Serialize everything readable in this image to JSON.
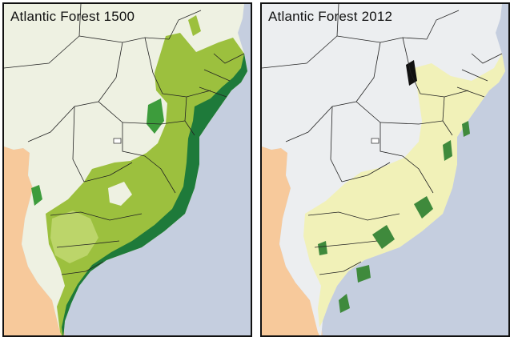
{
  "panels": [
    {
      "title": "Atlantic Forest 1500"
    },
    {
      "title": "Atlantic Forest 2012"
    }
  ],
  "colors": {
    "ocean": "#c5cedf",
    "neighbor_country": "#f7c99b",
    "land_1500": "#eef1e2",
    "land_2012": "#eceef0",
    "forest_dark": "#1e7a3a",
    "forest_mid": "#3d9c3c",
    "forest_light": "#9cc03e",
    "forest_pale": "#bcd56a",
    "remnant_yellow": "#f3f1a6",
    "remnant_green": "#3f8a3c",
    "boundary": "#222222"
  }
}
